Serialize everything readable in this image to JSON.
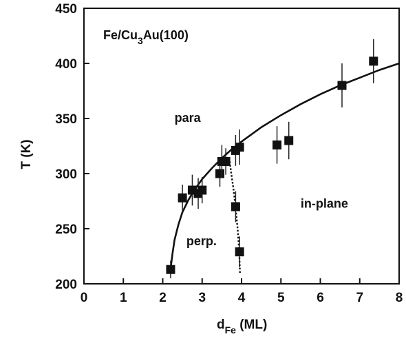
{
  "chart_data": {
    "type": "scatter",
    "title_parts": {
      "pre": "Fe/Cu",
      "sub": "3",
      "post": "Au(100)"
    },
    "xlabel_parts": {
      "main": "d",
      "sub": "Fe",
      "post": " (ML)"
    },
    "ylabel": "T (K)",
    "xlim": [
      0,
      8
    ],
    "ylim": [
      200,
      450
    ],
    "xticks": [
      0,
      1,
      2,
      3,
      4,
      5,
      6,
      7,
      8
    ],
    "yticks": [
      200,
      250,
      300,
      350,
      400,
      450
    ],
    "grid": false,
    "annotations": [
      {
        "name": "label-para",
        "text": "para",
        "x": 2.3,
        "y": 347
      },
      {
        "name": "label-perp",
        "text": "perp.",
        "x": 2.6,
        "y": 235
      },
      {
        "name": "label-in-plane",
        "text": "in-plane",
        "x": 5.5,
        "y": 269
      }
    ],
    "points": [
      {
        "x": 2.2,
        "y": 213,
        "err": 8
      },
      {
        "x": 2.5,
        "y": 278,
        "err": 12
      },
      {
        "x": 2.75,
        "y": 285,
        "err": 14
      },
      {
        "x": 2.9,
        "y": 282,
        "err": 14
      },
      {
        "x": 3.0,
        "y": 285,
        "err": 12
      },
      {
        "x": 3.45,
        "y": 300,
        "err": 12
      },
      {
        "x": 3.5,
        "y": 311,
        "err": 15
      },
      {
        "x": 3.6,
        "y": 311,
        "err": 12
      },
      {
        "x": 3.85,
        "y": 321,
        "err": 14
      },
      {
        "x": 3.95,
        "y": 324,
        "err": 16
      },
      {
        "x": 3.85,
        "y": 270,
        "err": 14
      },
      {
        "x": 3.95,
        "y": 229,
        "err": 14
      },
      {
        "x": 4.9,
        "y": 326,
        "err": 17
      },
      {
        "x": 5.2,
        "y": 330,
        "err": 17
      },
      {
        "x": 6.55,
        "y": 380,
        "err": 20
      },
      {
        "x": 7.35,
        "y": 402,
        "err": 20
      }
    ],
    "fit_curve": {
      "style": "solid",
      "x": [
        2.2,
        2.25,
        2.3,
        2.4,
        2.5,
        2.65,
        2.8,
        3.0,
        3.25,
        3.5,
        3.75,
        4.0,
        4.5,
        5.0,
        5.5,
        6.0,
        6.5,
        7.0,
        7.5,
        8.0
      ],
      "y": [
        214,
        228,
        240,
        254,
        265,
        276,
        285,
        295,
        305,
        314,
        322,
        329,
        342,
        353,
        363,
        372,
        380,
        387,
        394,
        400
      ]
    },
    "boundary_curve": {
      "style": "dotted",
      "x": [
        3.7,
        3.74,
        3.8,
        3.86,
        3.9,
        3.93,
        3.95,
        3.96
      ],
      "y": [
        311,
        300,
        285,
        265,
        250,
        235,
        222,
        210
      ]
    }
  }
}
